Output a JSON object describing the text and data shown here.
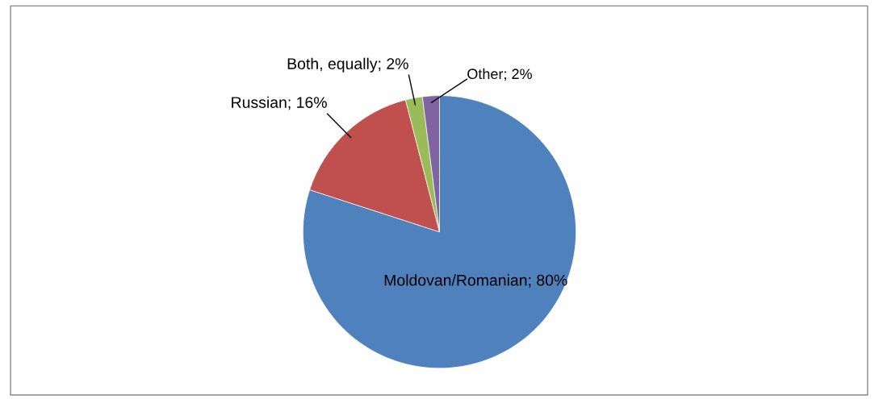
{
  "chart_data": {
    "type": "pie",
    "categories": [
      "Moldovan/Romanian",
      "Russian",
      "Both, equally",
      "Other"
    ],
    "values": [
      80,
      16,
      2,
      2
    ],
    "colors": [
      "#4f81bd",
      "#c0504d",
      "#9bbb59",
      "#8064a2"
    ],
    "value_labels": [
      "80%",
      "16%",
      "2%",
      "2%"
    ],
    "legend": false
  }
}
